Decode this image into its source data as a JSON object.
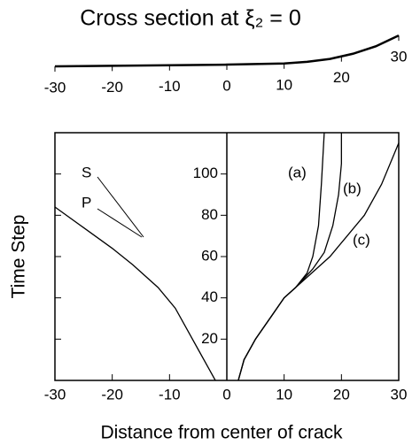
{
  "chart_data": [
    {
      "type": "line",
      "title": "Cross section at ξ₂ = 0",
      "xlim": [
        -30,
        30
      ],
      "xticks": [
        -30,
        -20,
        -10,
        0,
        10,
        20,
        30
      ],
      "series": [
        {
          "color": "#000000",
          "x": [
            -30,
            -20,
            -10,
            0,
            10,
            14,
            18,
            22,
            26,
            30
          ],
          "values": [
            0,
            0.1,
            0.2,
            0.3,
            0.5,
            0.8,
            1.3,
            2.2,
            3.5,
            5.4
          ]
        }
      ]
    },
    {
      "type": "line",
      "xlabel": "Distance from center of crack",
      "ylabel": "Time Step",
      "xlim": [
        -30,
        30
      ],
      "ylim": [
        0,
        120
      ],
      "xticks": [
        -30,
        -20,
        -10,
        0,
        10,
        20,
        30
      ],
      "yticks": [
        20,
        40,
        60,
        80,
        100
      ],
      "annotations": [
        "S",
        "P",
        "(a)",
        "(b)",
        "(c)"
      ],
      "series": [
        {
          "color": "#000000",
          "x": [
            -2,
            -3,
            -5,
            -6.6,
            -9,
            -12,
            -16.4,
            -20,
            -25,
            -30
          ],
          "values": [
            0,
            5,
            15,
            23,
            35,
            45,
            56,
            64,
            74,
            84
          ]
        },
        {
          "color": "#000000",
          "x": [
            2,
            3,
            5,
            8,
            10,
            12,
            14,
            15,
            16,
            16.5,
            17
          ],
          "values": [
            0,
            10,
            20,
            32,
            40,
            45,
            52,
            60,
            75,
            95,
            120
          ]
        },
        {
          "color": "#000000",
          "x": [
            2,
            3,
            5,
            8,
            10,
            12,
            15,
            17,
            18.5,
            19.5,
            20,
            20
          ],
          "values": [
            0,
            10,
            20,
            32,
            40,
            45,
            54,
            62,
            75,
            90,
            105,
            120
          ]
        },
        {
          "color": "#000000",
          "x": [
            2,
            3,
            5,
            8,
            10,
            14,
            18,
            21,
            24,
            27,
            30
          ],
          "values": [
            0,
            10,
            20,
            32,
            40,
            50,
            60,
            70,
            80,
            95,
            115
          ]
        }
      ]
    }
  ]
}
